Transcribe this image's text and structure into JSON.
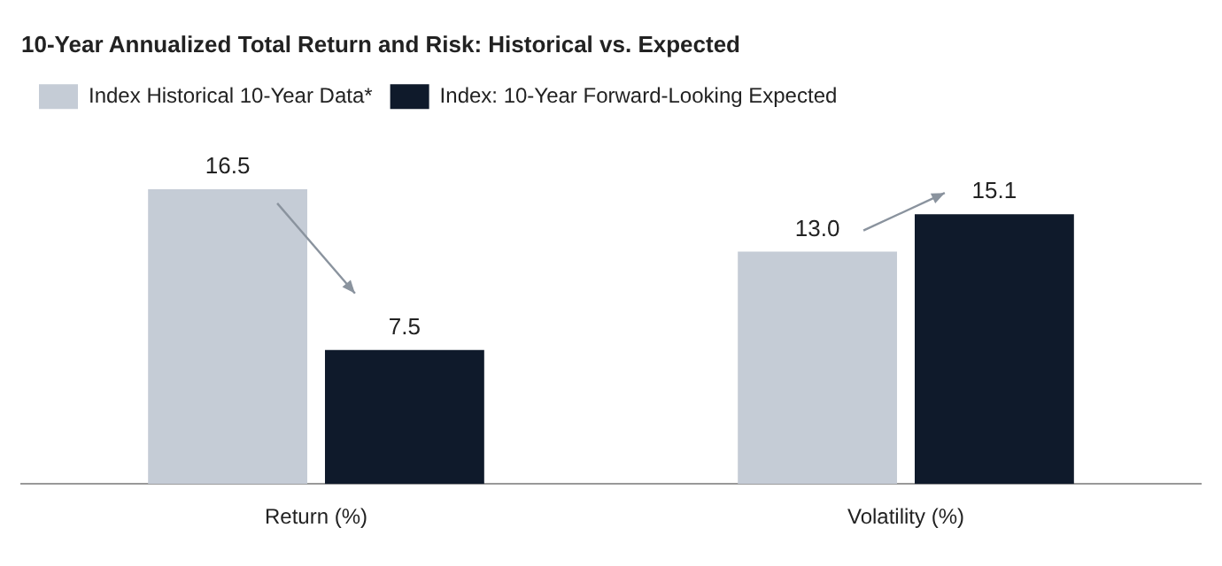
{
  "chart_data": {
    "type": "bar",
    "title": "10-Year Annualized Total Return and Risk: Historical vs. Expected",
    "categories": [
      "Return (%)",
      "Volatility (%)"
    ],
    "series": [
      {
        "name": "Index Historical 10-Year Data*",
        "color": "#c5ccd6",
        "values": [
          16.5,
          13.0
        ],
        "value_labels": [
          "16.5",
          "13.0"
        ]
      },
      {
        "name": "Index: 10-Year Forward-Looking Expected",
        "color": "#0f1a2b",
        "values": [
          7.5,
          15.1
        ],
        "value_labels": [
          "7.5",
          "15.1"
        ]
      }
    ],
    "grid": false,
    "legend": "top left"
  }
}
